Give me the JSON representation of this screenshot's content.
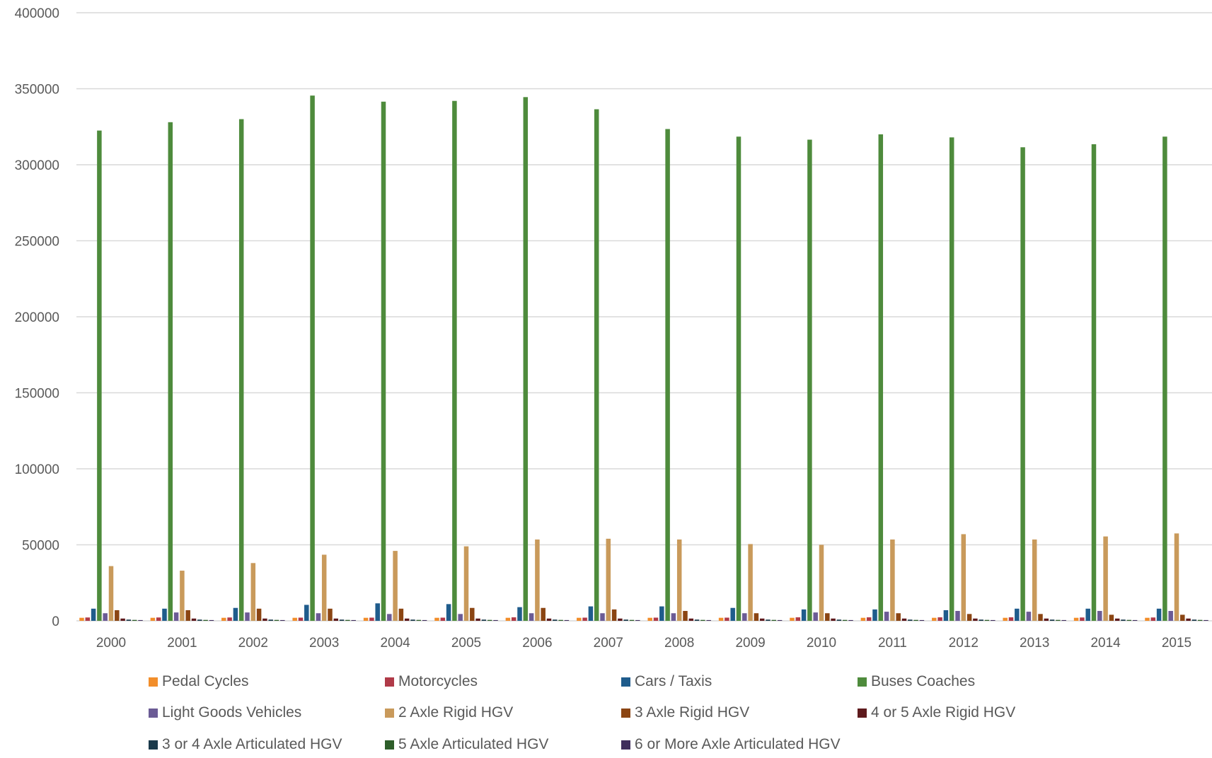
{
  "chart_data": {
    "type": "bar",
    "title": "",
    "xlabel": "",
    "ylabel": "",
    "ylim": [
      0,
      400000
    ],
    "yticks": [
      0,
      50000,
      100000,
      150000,
      200000,
      250000,
      300000,
      350000,
      400000
    ],
    "grid": true,
    "legend_position": "bottom",
    "categories": [
      "2000",
      "2001",
      "2002",
      "2003",
      "2004",
      "2005",
      "2006",
      "2007",
      "2008",
      "2009",
      "2010",
      "2011",
      "2012",
      "2013",
      "2014",
      "2015"
    ],
    "series": [
      {
        "name": "Pedal Cycles",
        "color": "#F28E2B",
        "values": [
          2000,
          2000,
          2000,
          2000,
          2000,
          2000,
          2000,
          2000,
          2000,
          2000,
          2000,
          2000,
          2000,
          2000,
          2000,
          2000
        ]
      },
      {
        "name": "Motorcycles",
        "color": "#B03A48",
        "values": [
          2200,
          2200,
          2200,
          2100,
          2100,
          2100,
          2300,
          2100,
          2100,
          2100,
          2300,
          2300,
          2300,
          2300,
          2200,
          2200
        ]
      },
      {
        "name": "Cars / Taxis",
        "color": "#1F5C8C",
        "values": [
          8000,
          8000,
          8500,
          10500,
          11500,
          11000,
          9000,
          9500,
          9500,
          8500,
          7500,
          7500,
          7000,
          8000,
          8000,
          8000
        ]
      },
      {
        "name": "Buses Coaches",
        "color": "#4E8B3C",
        "values": [
          322500,
          328000,
          330000,
          345500,
          341500,
          342000,
          344500,
          336500,
          323500,
          318500,
          316500,
          320000,
          318000,
          311500,
          313500,
          318500
        ]
      },
      {
        "name": "Light Goods Vehicles",
        "color": "#6B5B95",
        "values": [
          5000,
          5500,
          5500,
          5000,
          4500,
          4500,
          5000,
          5000,
          5000,
          5000,
          5500,
          6000,
          6500,
          6000,
          6500,
          6500
        ]
      },
      {
        "name": "2 Axle Rigid HGV",
        "color": "#C99A5B",
        "values": [
          36000,
          33000,
          38000,
          43500,
          46000,
          49000,
          53500,
          54000,
          53500,
          50500,
          50000,
          53500,
          57000,
          53500,
          55500,
          57500
        ]
      },
      {
        "name": "3 Axle Rigid HGV",
        "color": "#8B4513",
        "values": [
          7000,
          7000,
          8000,
          8000,
          8000,
          8500,
          8500,
          7500,
          6500,
          5000,
          5000,
          5000,
          4500,
          4500,
          4000,
          4000
        ]
      },
      {
        "name": "4 or 5 Axle Rigid HGV",
        "color": "#5E1A1D",
        "values": [
          1500,
          1500,
          1500,
          1500,
          1500,
          1500,
          1500,
          1500,
          1500,
          1500,
          1500,
          1500,
          1500,
          1500,
          1500,
          1500
        ]
      },
      {
        "name": "3 or 4 Axle Articulated HGV",
        "color": "#1B3A4B",
        "values": [
          800,
          800,
          800,
          800,
          800,
          800,
          800,
          800,
          800,
          800,
          800,
          800,
          800,
          800,
          800,
          800
        ]
      },
      {
        "name": "5 Axle Articulated HGV",
        "color": "#2E5E2A",
        "values": [
          600,
          600,
          600,
          600,
          600,
          600,
          600,
          600,
          600,
          600,
          600,
          600,
          600,
          600,
          600,
          600
        ]
      },
      {
        "name": "6 or More Axle Articulated HGV",
        "color": "#3F2E5C",
        "values": [
          500,
          500,
          500,
          500,
          500,
          500,
          500,
          500,
          500,
          500,
          500,
          500,
          500,
          500,
          500,
          500
        ]
      }
    ]
  }
}
